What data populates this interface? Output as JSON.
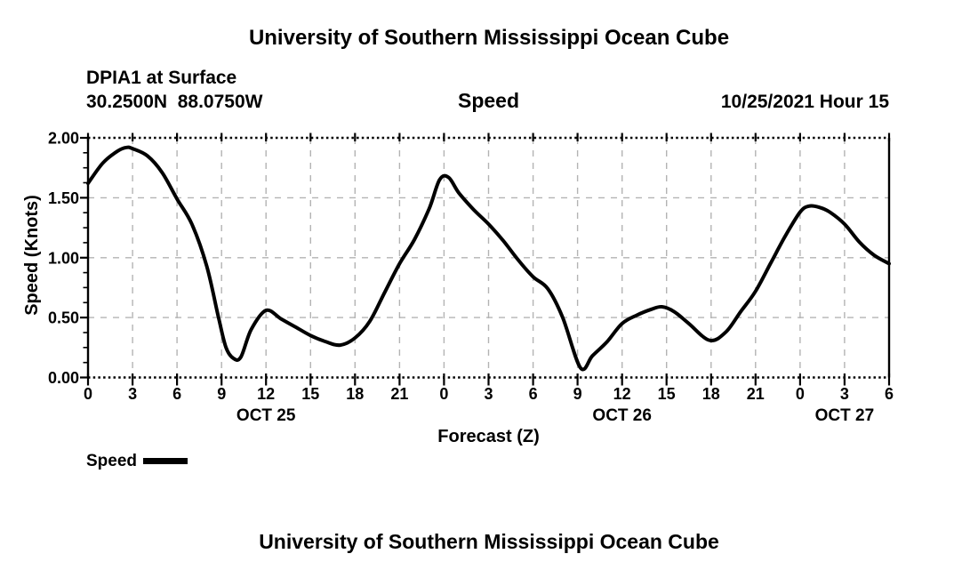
{
  "titles": {
    "top": "University of Southern Mississippi Ocean Cube",
    "bottom": "University of Southern Mississippi Ocean Cube"
  },
  "header": {
    "station": "DPIA1 at Surface",
    "coordinates": "30.2500N  88.0750W",
    "plot_title": "Speed",
    "timestamp": "10/25/2021 Hour 15"
  },
  "legend": {
    "label": "Speed",
    "swatch_color": "#000000"
  },
  "chart_data": {
    "type": "line",
    "title": "Speed",
    "xlabel": "Forecast (Z)",
    "ylabel": "Speed (Knots)",
    "xlim": [
      0,
      54
    ],
    "ylim": [
      0,
      2
    ],
    "grid": {
      "color": "#b3b3b3",
      "style": "dashed"
    },
    "line_color": "#000000",
    "x_axis": {
      "tick_hours": [
        0,
        3,
        6,
        9,
        12,
        15,
        18,
        21,
        24,
        27,
        30,
        33,
        36,
        39,
        42,
        45,
        48,
        51,
        54
      ],
      "tick_labels": [
        "0",
        "3",
        "6",
        "9",
        "12",
        "15",
        "18",
        "21",
        "0",
        "3",
        "6",
        "9",
        "12",
        "15",
        "18",
        "21",
        "0",
        "3",
        "6"
      ],
      "date_labels": [
        {
          "label": "OCT 25",
          "hour": 12
        },
        {
          "label": "OCT 26",
          "hour": 36
        },
        {
          "label": "OCT 27",
          "hour": 51
        }
      ]
    },
    "y_axis": {
      "tick_values": [
        0,
        0.5,
        1,
        1.5,
        2
      ],
      "tick_labels": [
        "0.00",
        "0.50",
        "1.00",
        "1.50",
        "2.00"
      ],
      "minor_step": 0.125
    },
    "series": [
      {
        "name": "Speed",
        "x": [
          0,
          1,
          2,
          2.6,
          3,
          4,
          5,
          6,
          7,
          8,
          8.8,
          9.3,
          9.8,
          10.3,
          11,
          12,
          13,
          14,
          15,
          16,
          17,
          18,
          19,
          20,
          21,
          22,
          23,
          23.7,
          24.3,
          25,
          26,
          27,
          28,
          29,
          30,
          31,
          32,
          33.2,
          34,
          35,
          36,
          37,
          38,
          38.7,
          39.5,
          40.5,
          41.9,
          43,
          44,
          45,
          46,
          47,
          48,
          48.6,
          49.3,
          50,
          51,
          52,
          53,
          54
        ],
        "y": [
          1.62,
          1.79,
          1.89,
          1.92,
          1.91,
          1.85,
          1.71,
          1.49,
          1.28,
          0.93,
          0.5,
          0.25,
          0.16,
          0.17,
          0.4,
          0.56,
          0.49,
          0.42,
          0.35,
          0.3,
          0.27,
          0.33,
          0.47,
          0.71,
          0.95,
          1.15,
          1.41,
          1.65,
          1.67,
          1.54,
          1.4,
          1.28,
          1.14,
          0.98,
          0.84,
          0.74,
          0.5,
          0.08,
          0.18,
          0.3,
          0.45,
          0.52,
          0.57,
          0.59,
          0.55,
          0.45,
          0.31,
          0.38,
          0.55,
          0.72,
          0.95,
          1.18,
          1.38,
          1.43,
          1.42,
          1.38,
          1.28,
          1.13,
          1.02,
          0.95
        ]
      }
    ]
  }
}
